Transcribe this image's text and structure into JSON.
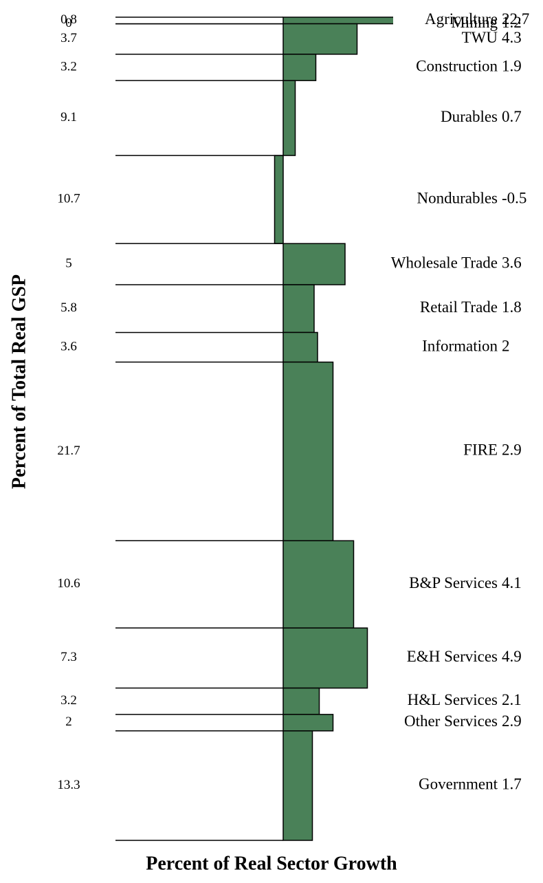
{
  "chart_data": {
    "type": "variwide",
    "x_label": "Percent of Real Sector Growth",
    "y_label": "Percent of Total Real GSP",
    "categories": [
      "Agriculture",
      "Mining",
      "TWU",
      "Construction",
      "Durables",
      "Nondurables",
      "Wholesale Trade",
      "Retail Trade",
      "Information",
      "FIRE",
      "B&P Services",
      "E&H Services",
      "H&L Services",
      "Other Services",
      "Government"
    ],
    "values": [
      22.7,
      1.2,
      4.3,
      1.9,
      0.7,
      -0.5,
      3.6,
      1.8,
      2.0,
      2.9,
      4.1,
      4.9,
      2.1,
      2.9,
      1.7
    ],
    "shares": [
      0.8,
      0.0,
      3.7,
      3.2,
      9.1,
      10.7,
      5.0,
      5.8,
      3.6,
      21.7,
      10.6,
      7.3,
      3.2,
      2.0,
      13.3
    ],
    "color": "#4a8158",
    "xlim": [
      -10,
      6.4
    ],
    "ylim": [
      0,
      100
    ]
  }
}
